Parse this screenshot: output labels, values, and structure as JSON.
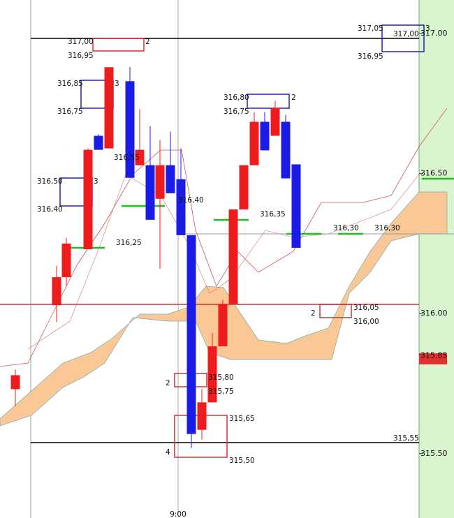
{
  "chart_data": {
    "type": "candlestick",
    "ylim": [
      315.27,
      317.12
    ],
    "yticks": [
      {
        "value": 317.0,
        "label": "317.00"
      },
      {
        "value": 316.5,
        "label": "316.50"
      },
      {
        "value": 316.0,
        "label": "316.00"
      },
      {
        "value": 315.5,
        "label": "315.50"
      }
    ],
    "last_price": {
      "value": 315.85,
      "label": "315.85"
    },
    "up_color": "#ee1c1c",
    "down_color": "#1b1be8",
    "open": [
      315.73,
      316.03,
      316.13,
      316.23,
      316.635,
      316.59,
      316.83,
      316.53,
      316.53,
      316.41,
      316.53,
      316.48,
      316.28,
      315.585,
      315.683,
      315.883,
      316.035,
      316.372,
      316.53,
      316.685,
      316.635,
      316.685,
      316.533
    ],
    "close": [
      315.78,
      316.13,
      316.25,
      316.585,
      316.585,
      316.88,
      316.485,
      316.585,
      316.335,
      316.53,
      316.43,
      316.28,
      315.57,
      315.683,
      315.883,
      316.035,
      316.372,
      316.53,
      316.685,
      316.583,
      316.735,
      316.483,
      316.235
    ],
    "high": [
      315.8,
      316.17,
      316.27,
      316.59,
      316.64,
      316.88,
      316.88,
      316.73,
      316.67,
      316.62,
      316.65,
      316.59,
      316.28,
      315.73,
      315.93,
      316.05,
      316.37,
      316.53,
      316.72,
      316.72,
      316.76,
      316.71,
      316.533
    ],
    "low": [
      315.67,
      315.97,
      316.1,
      316.23,
      316.585,
      316.59,
      316.485,
      316.53,
      316.335,
      316.16,
      316.43,
      316.28,
      315.52,
      315.55,
      315.683,
      315.883,
      316.035,
      316.372,
      316.53,
      316.583,
      316.635,
      316.483,
      316.235
    ],
    "annotations": [
      "317,00",
      "316,95",
      "2",
      "316,85",
      "316,75",
      "3",
      "316,55",
      "316,50",
      "316,40",
      "3",
      "316,25",
      "316,40",
      "316,80",
      "316,75",
      "2",
      "316,35",
      "316,30",
      "316,30",
      "316,05",
      "316,00",
      "2",
      "315,80",
      "315,75",
      "2",
      "315,65",
      "315,50",
      "4",
      "317,05",
      "316,95",
      "317,00",
      "3",
      "315,55"
    ],
    "x_label": "9:00"
  }
}
